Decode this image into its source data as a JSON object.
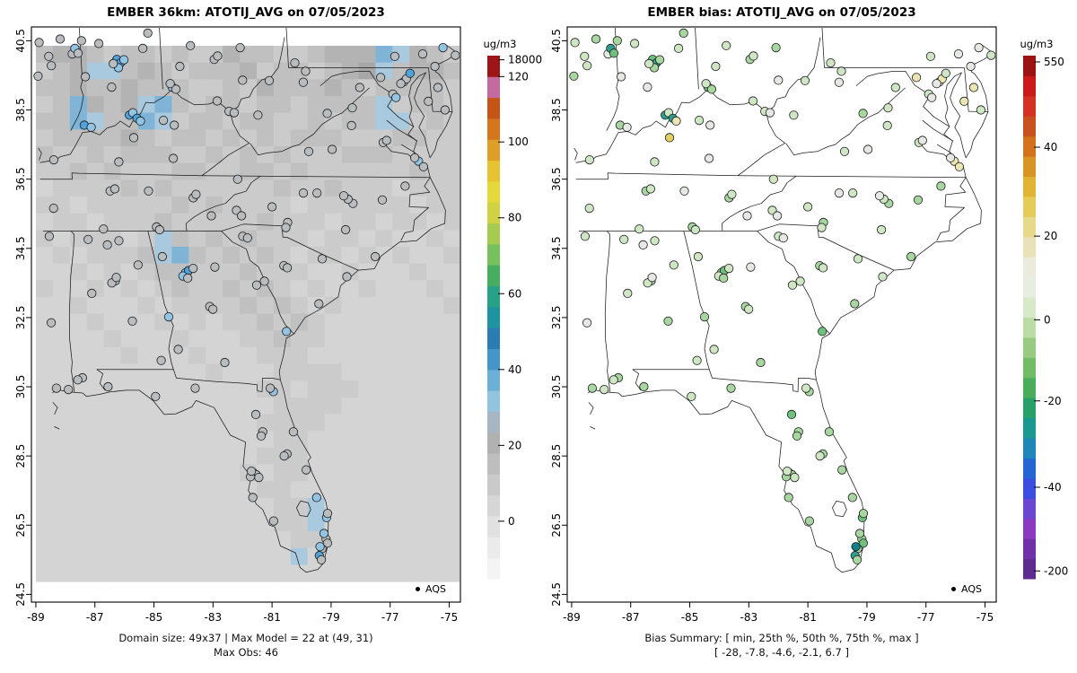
{
  "chart_data": [
    {
      "type": "map-raster-scatter",
      "title": "EMBER 36km: ATOTIJ_AVG on 07/05/2023",
      "units": "ug/m3",
      "legend": "AQS",
      "annotations": [
        "Domain size: 49x37 | Max Model = 22 at (49, 31)",
        "Max Obs: 46"
      ],
      "stats": {
        "domain_size": "49x37",
        "max_model": 22,
        "max_model_at": "(49, 31)",
        "max_obs": 46
      },
      "xlim": [
        -89.2,
        -74.5
      ],
      "ylim": [
        24.3,
        40.9
      ],
      "x_ticks": [
        -89,
        -87,
        -85,
        -83,
        -81,
        -79,
        -77,
        -75
      ],
      "y_ticks": [
        24.5,
        26.5,
        28.5,
        30.5,
        32.5,
        34.5,
        36.5,
        38.5,
        40.5
      ],
      "grid": false,
      "colorbar": {
        "label": "ug/m3",
        "ticks": [
          {
            "value": "18000",
            "frac": 0.008
          },
          {
            "value": "120",
            "frac": 0.04
          },
          {
            "value": "100",
            "frac": 0.165
          },
          {
            "value": "80",
            "frac": 0.31
          },
          {
            "value": "60",
            "frac": 0.455
          },
          {
            "value": "40",
            "frac": 0.6
          },
          {
            "value": "20",
            "frac": 0.745
          },
          {
            "value": "0",
            "frac": 0.89
          }
        ],
        "segments_bottom_to_top": [
          "#f4f4f4",
          "#ebebeb",
          "#e1e1e1",
          "#d6d6d6",
          "#cacaca",
          "#bebebe",
          "#b1b1b1",
          "#a6b6c2",
          "#93c4de",
          "#6bb0d8",
          "#4495c8",
          "#2b7cb5",
          "#1e94a1",
          "#27a287",
          "#47ae5f",
          "#77c05e",
          "#a5cc50",
          "#cfd243",
          "#e5d93a",
          "#e7c232",
          "#df9e28",
          "#d4761d",
          "#c55417",
          "#c46a9e",
          "#9e1517"
        ]
      },
      "raster": {
        "note": "Gridded 36km model concentration field (approximate gray/blue shading read from image)",
        "palette": {
          "0": "#dcdcdc",
          "1": "#d4d4d4",
          "2": "#cbcbcb",
          "3": "#c0c0c0",
          "4": "#b3b3b3",
          "5": "#a7a7a7",
          "a": "#a9c9de",
          "b": "#7fb4d6"
        },
        "grid": [
          "34432 33232 24332 23444 ba432",
          "234aa 34323 33423 32345 a3443",
          "33433 43332 23243 33432 33332",
          "23b43 4ab32 33233 23333 a2332",
          "33ba3 3ba23 32332 23233 aa232",
          "23333 43233 23232 33322 23322",
          "32232 33322 32323 22233 32222",
          "22323 22233 22332 32222 22322",
          "12222 32322 22223 22322 21222",
          "22122 22232 32222 12222 22122",
          "12212 22322 22232 22122 12212",
          "21222 12a32 32322 21221 21121",
          "12122 23ab3 23232 12212 12112",
          "11212 12332 22322 21121 11211",
          "21121 21232 23232 12112 11121",
          "11211 12122 22323 21211 11112",
          "11121 11212 12232 32111 11111",
          "11112 11121 11223 22111 11111",
          "11111 21112 11122 21111 11111",
          "11111 11111 21112 22211 11111",
          "11111 11111 11122 12221 11111",
          "11111 11111 11112 22211 11111",
          "11111 11111 11122 22111 11111",
          "11111 11111 11112 21111 11111",
          "11111 11111 11122 21111 11111",
          "11111 11111 11212 21111 11111",
          "11111 11111 11122 11111 11111",
          "11111 11111 11112 2a111 11111",
          "11111 11111 11112 2a111 11111",
          "11111 11111 11111 22111 11111",
          "11111 11111 11111 a1111 11111",
          "11111 11111 11111 11111 11111"
        ]
      }
    },
    {
      "type": "map-scatter",
      "title": "EMBER bias: ATOTIJ_AVG on 07/05/2023",
      "units": "ug/m3",
      "legend": "AQS",
      "annotations": [
        "Bias Summary: [ min, 25th %, 50th %, 75th %, max ]",
        "[ -28,  -7.8,  -4.6,  -2.1,  6.7 ]"
      ],
      "stats": {
        "bias_min": -28,
        "bias_p25": -7.8,
        "bias_p50": -4.6,
        "bias_p75": -2.1,
        "bias_max": 6.7
      },
      "xlim": [
        -89.2,
        -74.5
      ],
      "ylim": [
        24.3,
        40.9
      ],
      "x_ticks": [
        -89,
        -87,
        -85,
        -83,
        -81,
        -79,
        -77,
        -75
      ],
      "y_ticks": [
        24.5,
        26.5,
        28.5,
        30.5,
        32.5,
        34.5,
        36.5,
        38.5,
        40.5
      ],
      "grid": false,
      "colorbar": {
        "label": "ug/m3",
        "ticks": [
          {
            "value": "550",
            "frac": 0.012
          },
          {
            "value": "40",
            "frac": 0.175
          },
          {
            "value": "20",
            "frac": 0.345
          },
          {
            "value": "0",
            "frac": 0.505
          },
          {
            "value": "-20",
            "frac": 0.66
          },
          {
            "value": "-40",
            "frac": 0.825
          },
          {
            "value": "-200",
            "frac": 0.985
          }
        ],
        "segments_bottom_to_top": [
          "#5e2c8e",
          "#7230a8",
          "#8a3ac0",
          "#6a46d2",
          "#3c4ee0",
          "#2466d2",
          "#1f86b8",
          "#1b988f",
          "#27a06a",
          "#49ad5c",
          "#72bc68",
          "#98cb82",
          "#bcdca6",
          "#d8e9c8",
          "#e8ede2",
          "#eceada",
          "#e9e2b8",
          "#e7d98b",
          "#e5cb58",
          "#e0b434",
          "#d99426",
          "#d2731b",
          "#c9511f",
          "#d33122",
          "#cb1a1a",
          "#9c1313"
        ]
      }
    }
  ],
  "sites": {
    "fields": [
      "lon",
      "lat",
      "model_color_key",
      "bias_color_key"
    ],
    "color_legend": {
      "model": {
        "g": "#b9bdbf",
        "a": "#93c4e4",
        "b": "#4da3da"
      },
      "bias": {
        "w": "#e6e8e3",
        "l": "#cfe6c4",
        "m": "#a7d6a0",
        "d": "#6fc27e",
        "t": "#2f9e8f",
        "T": "#127f8c",
        "y": "#ece4b3",
        "Y": "#e3cf63"
      }
    },
    "rows": [
      [
        -88.92,
        40.45,
        "g",
        "l"
      ],
      [
        -88.2,
        40.55,
        "g",
        "m"
      ],
      [
        -87.82,
        40.12,
        "g",
        "w"
      ],
      [
        -88.55,
        39.78,
        "g",
        "l"
      ],
      [
        -89.02,
        39.48,
        "g",
        "m"
      ],
      [
        -88.62,
        40.05,
        "g",
        "l"
      ],
      [
        -87.48,
        40.5,
        "g",
        "m"
      ],
      [
        -87.72,
        40.28,
        "a",
        "t"
      ],
      [
        -87.62,
        40.14,
        "g",
        "d"
      ],
      [
        -86.9,
        40.42,
        "g",
        "l"
      ],
      [
        -85.22,
        40.72,
        "g",
        "m"
      ],
      [
        -85.42,
        40.28,
        "g",
        "l"
      ],
      [
        -86.32,
        39.96,
        "b",
        "d"
      ],
      [
        -86.2,
        39.86,
        "b",
        "t"
      ],
      [
        -86.08,
        39.95,
        "a",
        "m"
      ],
      [
        -86.28,
        39.72,
        "a",
        "m"
      ],
      [
        -86.45,
        39.84,
        "g",
        "l"
      ],
      [
        -87.42,
        39.46,
        "g",
        "w"
      ],
      [
        -86.55,
        39.16,
        "g",
        "w"
      ],
      [
        -87.55,
        38.06,
        "b",
        "m"
      ],
      [
        -87.32,
        38.0,
        "a",
        "w"
      ],
      [
        -86.0,
        38.35,
        "b",
        "t"
      ],
      [
        -85.88,
        38.42,
        "a",
        "l"
      ],
      [
        -84.5,
        39.16,
        "a",
        "d"
      ],
      [
        -84.38,
        39.1,
        "g",
        "m"
      ],
      [
        -84.56,
        39.26,
        "g",
        "l"
      ],
      [
        -84.2,
        39.76,
        "g",
        "l"
      ],
      [
        -83.02,
        39.96,
        "g",
        "m"
      ],
      [
        -82.9,
        40.06,
        "g",
        "l"
      ],
      [
        -83.8,
        40.36,
        "g",
        "l"
      ],
      [
        -82.12,
        40.3,
        "g",
        "m"
      ],
      [
        -83.0,
        38.76,
        "g",
        "l"
      ],
      [
        -82.1,
        39.36,
        "g",
        "w"
      ],
      [
        -85.75,
        38.26,
        "b",
        "t"
      ],
      [
        -85.64,
        38.18,
        "a",
        "y"
      ],
      [
        -84.5,
        38.06,
        "g",
        "w"
      ],
      [
        -84.86,
        38.2,
        "g",
        "l"
      ],
      [
        -85.9,
        37.7,
        "g",
        "Y"
      ],
      [
        -86.45,
        37.0,
        "g",
        "l"
      ],
      [
        -88.65,
        37.06,
        "g",
        "l"
      ],
      [
        -84.6,
        37.1,
        "g",
        "w"
      ],
      [
        -82.62,
        38.46,
        "g",
        "l"
      ],
      [
        -81.65,
        38.35,
        "g",
        "l"
      ],
      [
        -82.45,
        38.42,
        "g",
        "w"
      ],
      [
        -79.95,
        39.62,
        "g",
        "l"
      ],
      [
        -80.05,
        39.3,
        "g",
        "w"
      ],
      [
        -81.2,
        39.35,
        "g",
        "l"
      ],
      [
        -80.3,
        39.86,
        "g",
        "l"
      ],
      [
        -76.9,
        40.05,
        "g",
        "l"
      ],
      [
        -75.95,
        40.12,
        "g",
        "w"
      ],
      [
        -75.25,
        40.3,
        "a",
        "w"
      ],
      [
        -74.85,
        40.08,
        "g",
        "l"
      ],
      [
        -76.65,
        39.31,
        "a",
        "w"
      ],
      [
        -76.55,
        39.4,
        "g",
        "y"
      ],
      [
        -76.75,
        39.26,
        "g",
        "w"
      ],
      [
        -77.04,
        38.96,
        "g",
        "l"
      ],
      [
        -76.94,
        38.86,
        "a",
        "w"
      ],
      [
        -77.42,
        39.44,
        "g",
        "y"
      ],
      [
        -75.85,
        38.75,
        "g",
        "y"
      ],
      [
        -75.56,
        39.76,
        "g",
        "w"
      ],
      [
        -75.5,
        39.15,
        "g",
        "y"
      ],
      [
        -75.3,
        38.5,
        "g",
        "l"
      ],
      [
        -76.42,
        39.56,
        "b",
        "l"
      ],
      [
        -77.46,
        37.56,
        "g",
        "l"
      ],
      [
        -77.34,
        37.62,
        "g",
        "w"
      ],
      [
        -76.3,
        37.02,
        "a",
        "y"
      ],
      [
        -76.14,
        36.86,
        "g",
        "y"
      ],
      [
        -76.42,
        37.12,
        "g",
        "w"
      ],
      [
        -80.0,
        37.3,
        "g",
        "l"
      ],
      [
        -79.2,
        37.36,
        "g",
        "w"
      ],
      [
        -78.5,
        38.05,
        "g",
        "l"
      ],
      [
        -78.15,
        39.15,
        "g",
        "l"
      ],
      [
        -78.44,
        38.56,
        "g",
        "l"
      ],
      [
        -79.3,
        38.4,
        "g",
        "m"
      ],
      [
        -80.85,
        35.25,
        "g",
        "m"
      ],
      [
        -80.92,
        35.1,
        "g",
        "l"
      ],
      [
        -78.6,
        35.8,
        "g",
        "m"
      ],
      [
        -78.76,
        35.92,
        "g",
        "l"
      ],
      [
        -79.8,
        36.1,
        "g",
        "l"
      ],
      [
        -80.26,
        36.1,
        "g",
        "w"
      ],
      [
        -78.9,
        36.02,
        "g",
        "w"
      ],
      [
        -82.56,
        35.6,
        "g",
        "l"
      ],
      [
        -82.4,
        35.44,
        "g",
        "w"
      ],
      [
        -81.35,
        35.7,
        "g",
        "l"
      ],
      [
        -77.6,
        35.9,
        "g",
        "m"
      ],
      [
        -77.95,
        34.26,
        "g",
        "m"
      ],
      [
        -78.9,
        35.04,
        "g",
        "l"
      ],
      [
        -83.42,
        35.44,
        "g",
        "w"
      ],
      [
        -76.8,
        36.3,
        "g",
        "m"
      ],
      [
        -82.4,
        34.85,
        "g",
        "l"
      ],
      [
        -82.24,
        34.8,
        "g",
        "w"
      ],
      [
        -81.06,
        34.0,
        "g",
        "m"
      ],
      [
        -80.95,
        33.94,
        "g",
        "l"
      ],
      [
        -79.75,
        34.2,
        "g",
        "l"
      ],
      [
        -81.75,
        33.55,
        "g",
        "l"
      ],
      [
        -79.95,
        32.9,
        "g",
        "m"
      ],
      [
        -78.95,
        33.68,
        "g",
        "l"
      ],
      [
        -84.4,
        33.8,
        "a",
        "m"
      ],
      [
        -84.3,
        33.86,
        "b",
        "d"
      ],
      [
        -84.5,
        33.7,
        "a",
        "l"
      ],
      [
        -84.34,
        33.64,
        "g",
        "m"
      ],
      [
        -84.14,
        33.92,
        "g",
        "l"
      ],
      [
        -85.16,
        34.26,
        "g",
        "l"
      ],
      [
        -83.4,
        33.96,
        "g",
        "w"
      ],
      [
        -82.02,
        33.44,
        "g",
        "l"
      ],
      [
        -83.65,
        32.82,
        "g",
        "m"
      ],
      [
        -83.55,
        32.74,
        "g",
        "l"
      ],
      [
        -85.06,
        32.52,
        "a",
        "m"
      ],
      [
        -81.1,
        32.1,
        "a",
        "d"
      ],
      [
        -83.25,
        31.2,
        "g",
        "m"
      ],
      [
        -84.8,
        31.58,
        "g",
        "l"
      ],
      [
        -86.6,
        34.72,
        "g",
        "l"
      ],
      [
        -87.0,
        34.6,
        "g",
        "w"
      ],
      [
        -87.64,
        34.76,
        "g",
        "l"
      ],
      [
        -86.0,
        34.02,
        "g",
        "l"
      ],
      [
        -86.8,
        33.56,
        "g",
        "m"
      ],
      [
        -86.92,
        33.5,
        "g",
        "l"
      ],
      [
        -86.76,
        33.66,
        "g",
        "w"
      ],
      [
        -87.62,
        33.2,
        "g",
        "l"
      ],
      [
        -86.3,
        32.4,
        "g",
        "m"
      ],
      [
        -88.1,
        30.76,
        "g",
        "m"
      ],
      [
        -88.26,
        30.7,
        "g",
        "l"
      ],
      [
        -85.4,
        31.26,
        "g",
        "l"
      ],
      [
        -88.95,
        34.85,
        "g",
        "l"
      ],
      [
        -89.05,
        32.35,
        "g",
        "w"
      ],
      [
        -89.0,
        30.46,
        "g",
        "m"
      ],
      [
        -88.6,
        30.42,
        "g",
        "l"
      ],
      [
        -88.75,
        35.66,
        "g",
        "l"
      ],
      [
        -86.8,
        36.16,
        "g",
        "m"
      ],
      [
        -86.64,
        36.22,
        "g",
        "l"
      ],
      [
        -85.5,
        36.16,
        "g",
        "w"
      ],
      [
        -85.3,
        35.12,
        "g",
        "m"
      ],
      [
        -85.2,
        35.04,
        "g",
        "l"
      ],
      [
        -84.0,
        35.96,
        "g",
        "m"
      ],
      [
        -83.9,
        36.06,
        "g",
        "l"
      ],
      [
        -82.46,
        36.5,
        "g",
        "l"
      ],
      [
        -87.1,
        35.06,
        "g",
        "l"
      ],
      [
        -87.25,
        30.5,
        "g",
        "m"
      ],
      [
        -85.66,
        30.22,
        "g",
        "l"
      ],
      [
        -84.3,
        30.46,
        "g",
        "m"
      ],
      [
        -81.66,
        30.36,
        "a",
        "m"
      ],
      [
        -81.76,
        30.46,
        "g",
        "l"
      ],
      [
        -82.3,
        29.7,
        "g",
        "d"
      ],
      [
        -82.1,
        29.2,
        "g",
        "m"
      ],
      [
        -82.16,
        29.08,
        "g",
        "m"
      ],
      [
        -81.06,
        29.2,
        "g",
        "m"
      ],
      [
        -81.32,
        28.56,
        "g",
        "m"
      ],
      [
        -81.42,
        28.5,
        "g",
        "l"
      ],
      [
        -80.7,
        28.1,
        "g",
        "m"
      ],
      [
        -82.5,
        28.02,
        "g",
        "l"
      ],
      [
        -82.4,
        27.96,
        "g",
        "m"
      ],
      [
        -82.6,
        27.9,
        "g",
        "m"
      ],
      [
        -82.56,
        28.06,
        "g",
        "l"
      ],
      [
        -82.32,
        27.88,
        "g",
        "l"
      ],
      [
        -82.56,
        27.3,
        "g",
        "m"
      ],
      [
        -81.9,
        26.62,
        "g",
        "m"
      ],
      [
        -80.4,
        27.3,
        "a",
        "m"
      ],
      [
        -80.1,
        26.72,
        "a",
        "d"
      ],
      [
        -80.06,
        26.84,
        "g",
        "m"
      ],
      [
        -80.16,
        26.1,
        "g",
        "m"
      ],
      [
        -80.22,
        26.26,
        "a",
        "m"
      ],
      [
        -80.12,
        25.98,
        "g",
        "d"
      ],
      [
        -80.32,
        25.82,
        "g",
        "m"
      ],
      [
        -80.38,
        25.88,
        "a",
        "T"
      ],
      [
        -80.42,
        25.62,
        "b",
        "t"
      ],
      [
        -80.36,
        25.5,
        "g",
        "m"
      ]
    ]
  }
}
